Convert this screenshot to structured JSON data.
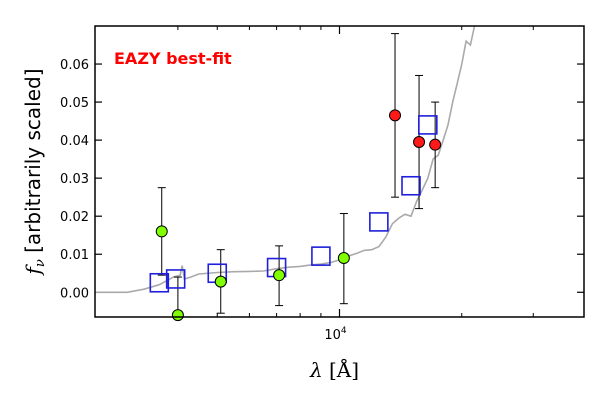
{
  "chart_data": {
    "type": "scatter",
    "xscale": "log",
    "xlim": [
      2500,
      40000
    ],
    "ylim": [
      -0.0065,
      0.07
    ],
    "ylabel": "f_ν [arbitrarily scaled]",
    "xlabel": "λ [Å]",
    "annotation": "EAZY best-fit",
    "yticks": [
      {
        "v": 0.0,
        "label": "0.00"
      },
      {
        "v": 0.01,
        "label": "0.01"
      },
      {
        "v": 0.02,
        "label": "0.02"
      },
      {
        "v": 0.03,
        "label": "0.03"
      },
      {
        "v": 0.04,
        "label": "0.04"
      },
      {
        "v": 0.05,
        "label": "0.05"
      },
      {
        "v": 0.06,
        "label": "0.06"
      }
    ],
    "xticks_major": [
      {
        "v": 10000,
        "base": "10",
        "exp": "4"
      }
    ],
    "xticks_minor": [
      4000,
      5000,
      6000,
      7000,
      8000,
      9000,
      20000,
      30000
    ],
    "colors": {
      "model_line": "#aaaaaa",
      "template": "#1f1fdd",
      "green": "#7fff00",
      "red": "#ff1a1a",
      "axes": "#000000"
    },
    "series": [
      {
        "kind": "model_spectrum",
        "points": [
          [
            2500,
            0.0
          ],
          [
            3000,
            0.0
          ],
          [
            3300,
            0.0008
          ],
          [
            3600,
            0.002
          ],
          [
            3900,
            0.004
          ],
          [
            4050,
            0.0045
          ],
          [
            4100,
            0.007
          ],
          [
            4150,
            0.0035
          ],
          [
            4300,
            0.004
          ],
          [
            4500,
            0.0048
          ],
          [
            5000,
            0.0052
          ],
          [
            5500,
            0.0054
          ],
          [
            6000,
            0.0055
          ],
          [
            6500,
            0.0056
          ],
          [
            7000,
            0.0062
          ],
          [
            7500,
            0.0066
          ],
          [
            8000,
            0.0068
          ],
          [
            8500,
            0.0072
          ],
          [
            9000,
            0.0074
          ],
          [
            9500,
            0.0078
          ],
          [
            10000,
            0.0085
          ],
          [
            10500,
            0.0095
          ],
          [
            11000,
            0.0102
          ],
          [
            11500,
            0.011
          ],
          [
            12000,
            0.0112
          ],
          [
            12500,
            0.012
          ],
          [
            13000,
            0.0145
          ],
          [
            13500,
            0.018
          ],
          [
            14000,
            0.0195
          ],
          [
            14500,
            0.0205
          ],
          [
            15000,
            0.02
          ],
          [
            15500,
            0.024
          ],
          [
            16000,
            0.027
          ],
          [
            16500,
            0.03
          ],
          [
            17000,
            0.035
          ],
          [
            17500,
            0.036
          ],
          [
            18000,
            0.04
          ],
          [
            18500,
            0.044
          ],
          [
            19000,
            0.05
          ],
          [
            19500,
            0.055
          ],
          [
            20000,
            0.06
          ],
          [
            20500,
            0.066
          ],
          [
            21000,
            0.065
          ],
          [
            21500,
            0.07
          ]
        ]
      },
      {
        "kind": "template_flux",
        "marker": "square",
        "points": [
          [
            3600,
            0.0025
          ],
          [
            3950,
            0.0035
          ],
          [
            5000,
            0.005
          ],
          [
            7000,
            0.0065
          ],
          [
            9000,
            0.0095
          ],
          [
            12500,
            0.0185
          ],
          [
            15000,
            0.028
          ],
          [
            16500,
            0.044
          ]
        ]
      },
      {
        "kind": "observed",
        "marker": "circle",
        "color": "green",
        "points": [
          {
            "x": 3650,
            "y": 0.016,
            "lo": 0.0045,
            "hi": 0.0275
          },
          {
            "x": 4000,
            "y": -0.006,
            "lo": -0.0065,
            "hi": 0.004
          },
          {
            "x": 5100,
            "y": 0.0028,
            "lo": -0.0055,
            "hi": 0.0112
          },
          {
            "x": 7100,
            "y": 0.0045,
            "lo": -0.0035,
            "hi": 0.0122
          },
          {
            "x": 10250,
            "y": 0.009,
            "lo": -0.003,
            "hi": 0.0207
          }
        ]
      },
      {
        "kind": "observed",
        "marker": "circle",
        "color": "red",
        "points": [
          {
            "x": 13700,
            "y": 0.0465,
            "lo": 0.025,
            "hi": 0.068
          },
          {
            "x": 15700,
            "y": 0.0395,
            "lo": 0.022,
            "hi": 0.057
          },
          {
            "x": 17200,
            "y": 0.0388,
            "lo": 0.0275,
            "hi": 0.05
          }
        ]
      }
    ]
  }
}
